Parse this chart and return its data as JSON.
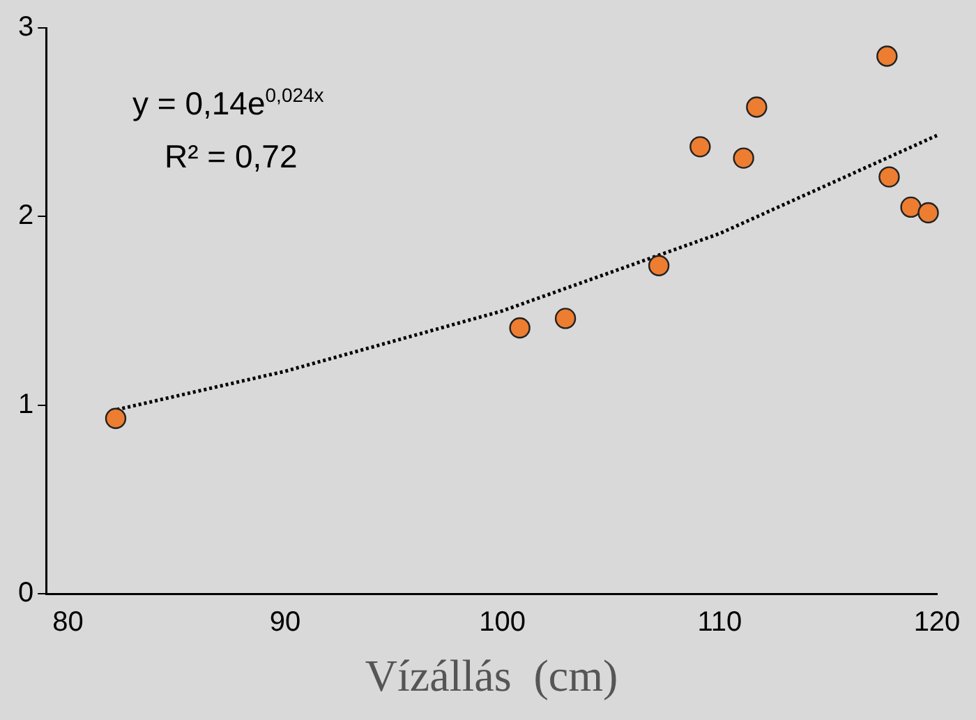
{
  "chart_data": {
    "type": "scatter",
    "xlabel": "Vízállás  (cm)",
    "xlim": [
      79,
      120
    ],
    "xticks": [
      80,
      90,
      100,
      110,
      120
    ],
    "ylim": [
      0,
      3
    ],
    "yticks": [
      0,
      1,
      2,
      3
    ],
    "grid": false,
    "legend": false,
    "marker": "circle",
    "annotations": [
      "y = 0,14e$^{0,024x}$",
      "R² = 0,72"
    ],
    "series": [
      {
        "type": "scatter",
        "color": "#ed7d31",
        "x": [
          82.2,
          100.8,
          102.9,
          107.2,
          109.1,
          111.1,
          111.7,
          117.7,
          117.8,
          118.8,
          119.6
        ],
        "values": [
          0.93,
          1.41,
          1.46,
          1.74,
          2.37,
          2.31,
          2.58,
          2.85,
          2.21,
          2.05,
          2.02
        ]
      },
      {
        "type": "line",
        "color": "#000000",
        "line_style": "dotted",
        "marker": "none",
        "x": [
          82,
          90,
          100,
          110,
          120
        ],
        "values": [
          0.97,
          1.18,
          1.5,
          1.91,
          2.43
        ]
      }
    ]
  }
}
